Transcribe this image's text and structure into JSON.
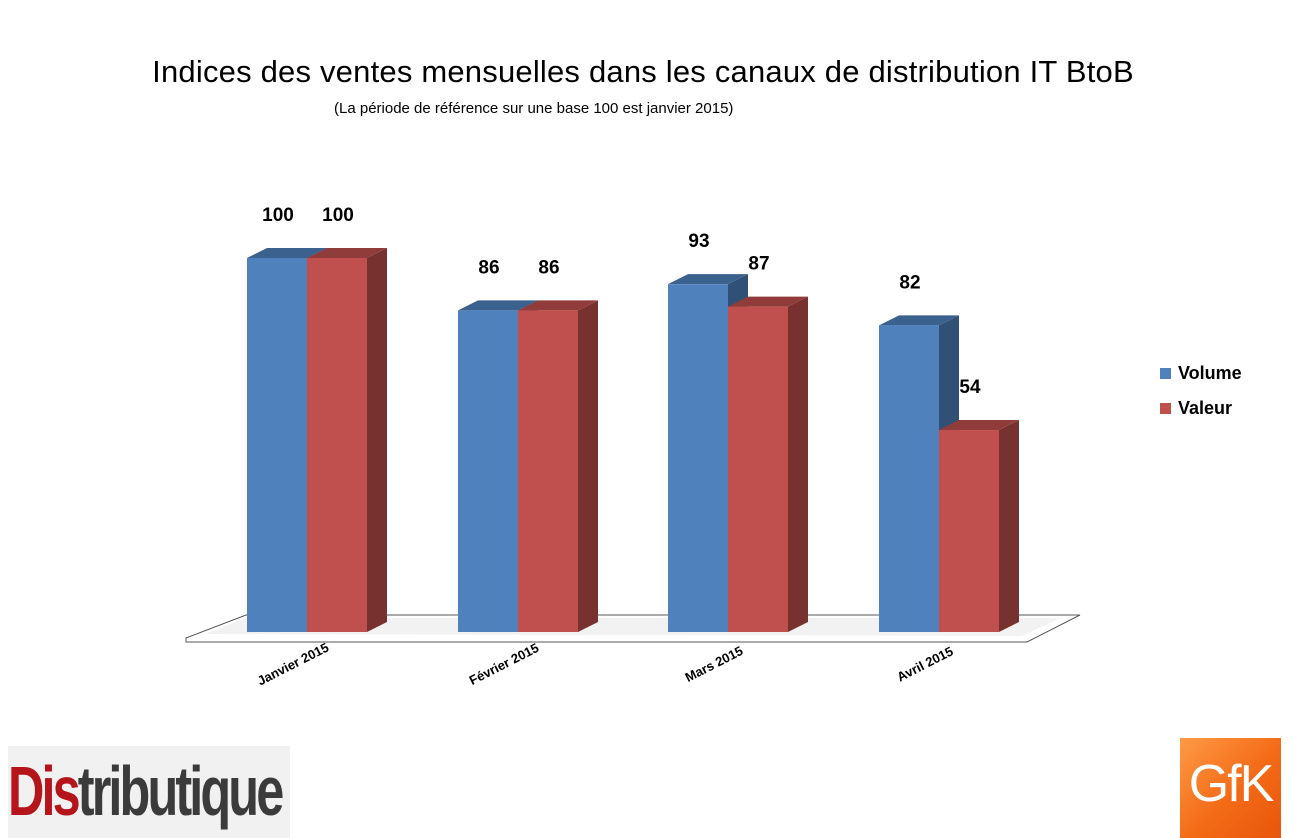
{
  "chart_data": {
    "type": "bar",
    "title": "Indices des ventes mensuelles dans les canaux de distribution IT BtoB",
    "subtitle": "(La période de référence sur une base 100 est janvier 2015)",
    "categories": [
      "Janvier 2015",
      "Février 2015",
      "Mars 2015",
      "Avril 2015"
    ],
    "series": [
      {
        "name": "Volume",
        "color": "#4f81bd",
        "values": [
          100,
          86,
          93,
          82
        ]
      },
      {
        "name": "Valeur",
        "color": "#c0504d",
        "values": [
          100,
          86,
          87,
          54
        ]
      }
    ],
    "ylim": [
      0,
      100
    ],
    "grid": false,
    "style": "3d-clustered-column",
    "legend_position": "right",
    "data_labels": true
  },
  "logos": {
    "left": {
      "text_red": "Dis",
      "text_dark": "tributique"
    },
    "right": {
      "text": "GfK"
    }
  }
}
